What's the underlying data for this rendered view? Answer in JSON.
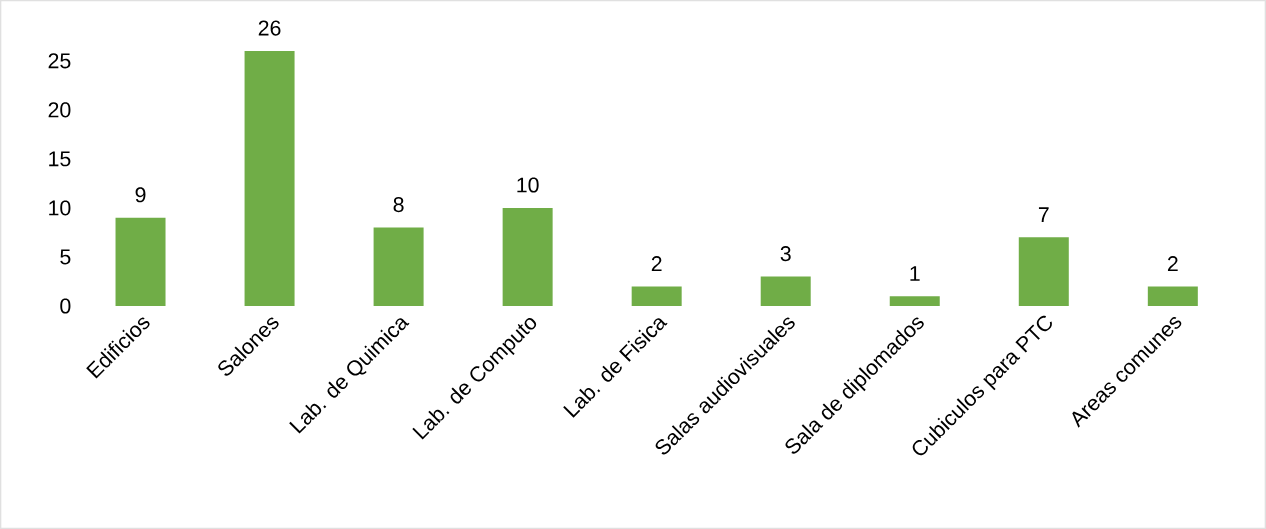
{
  "chart_data": {
    "type": "bar",
    "categories": [
      "Edificios",
      "Salones",
      "Lab. de Quimica",
      "Lab. de Computo",
      "Lab. de Fisica",
      "Salas audiovisuales",
      "Sala de diplomados",
      "Cubiculos para PTC",
      "Areas comunes"
    ],
    "values": [
      9,
      26,
      8,
      10,
      2,
      3,
      1,
      7,
      2
    ],
    "color": "#70ad47",
    "ylim": [
      0,
      31
    ],
    "yticks": [
      0,
      5,
      10,
      15,
      20,
      25
    ],
    "data_labels": true,
    "grid": false
  }
}
